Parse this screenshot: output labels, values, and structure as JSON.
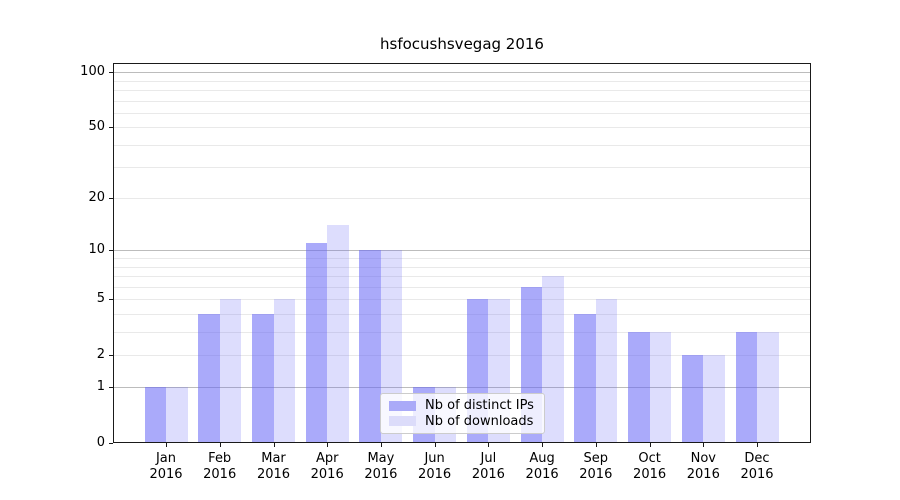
{
  "chart_data": {
    "type": "bar",
    "title": "hsfocushsvegag 2016",
    "xlabel": "",
    "ylabel": "",
    "yscale": "log1p",
    "ylim": [
      0,
      113
    ],
    "grid": true,
    "legend_position": "lower center",
    "yticks": [
      100,
      50,
      20,
      10,
      5,
      2,
      1,
      0
    ],
    "categories": [
      "Jan\n2016",
      "Feb\n2016",
      "Mar\n2016",
      "Apr\n2016",
      "May\n2016",
      "Jun\n2016",
      "Jul\n2016",
      "Aug\n2016",
      "Sep\n2016",
      "Oct\n2016",
      "Nov\n2016",
      "Dec\n2016"
    ],
    "series": [
      {
        "name": "Nb of distinct IPs",
        "color": "#aaaaf8",
        "values": [
          1,
          4,
          4,
          11,
          10,
          1,
          5,
          6,
          4,
          3,
          2,
          3
        ]
      },
      {
        "name": "Nb of downloads",
        "color": "#dcdcfa",
        "values": [
          1,
          5,
          5,
          14,
          10,
          1,
          5,
          7,
          5,
          3,
          2,
          3
        ]
      }
    ]
  }
}
